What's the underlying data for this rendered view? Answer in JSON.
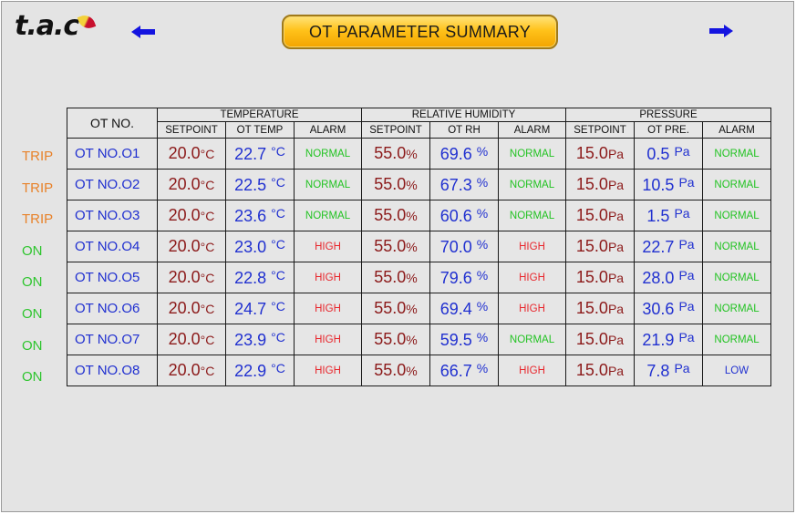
{
  "header": {
    "logo_text": "t.a.c",
    "title": "OT PARAMETER SUMMARY"
  },
  "icons": {
    "left_arrow": "arrow-left-icon",
    "right_arrow": "arrow-right-icon"
  },
  "colors": {
    "trip": "#e8822a",
    "on": "#2ec52e",
    "normal": "#22c322",
    "high": "#e8262c",
    "low": "#2030d0"
  },
  "table": {
    "otno_header": "OT NO.",
    "groups": [
      "TEMPERATURE",
      "RELATIVE HUMIDITY",
      "PRESSURE"
    ],
    "sub_headers": [
      "SETPOINT",
      "OT TEMP",
      "ALARM",
      "SETPOINT",
      "OT RH",
      "ALARM",
      "SETPOINT",
      "OT PRE.",
      "ALARM"
    ],
    "rows": [
      {
        "status": "TRIP",
        "otno": "OT NO.O1",
        "t_sp": "20.0",
        "t_sp_unit": "°C",
        "t_val": "22.7",
        "t_unit": "°C",
        "t_alarm": "NORMAL",
        "rh_sp": "55.0",
        "rh_sp_unit": "%",
        "rh_val": "69.6",
        "rh_unit": "%",
        "rh_alarm": "NORMAL",
        "p_sp": "15.0",
        "p_sp_unit": "Pa",
        "p_val": "0.5",
        "p_unit": "Pa",
        "p_alarm": "NORMAL"
      },
      {
        "status": "TRIP",
        "otno": "OT NO.O2",
        "t_sp": "20.0",
        "t_sp_unit": "°C",
        "t_val": "22.5",
        "t_unit": "°C",
        "t_alarm": "NORMAL",
        "rh_sp": "55.0",
        "rh_sp_unit": "%",
        "rh_val": "67.3",
        "rh_unit": "%",
        "rh_alarm": "NORMAL",
        "p_sp": "15.0",
        "p_sp_unit": "Pa",
        "p_val": "10.5",
        "p_unit": "Pa",
        "p_alarm": "NORMAL"
      },
      {
        "status": "TRIP",
        "otno": "OT NO.O3",
        "t_sp": "20.0",
        "t_sp_unit": "°C",
        "t_val": "23.6",
        "t_unit": "°C",
        "t_alarm": "NORMAL",
        "rh_sp": "55.0",
        "rh_sp_unit": "%",
        "rh_val": "60.6",
        "rh_unit": "%",
        "rh_alarm": "NORMAL",
        "p_sp": "15.0",
        "p_sp_unit": "Pa",
        "p_val": "1.5",
        "p_unit": "Pa",
        "p_alarm": "NORMAL"
      },
      {
        "status": "ON",
        "otno": "OT NO.O4",
        "t_sp": "20.0",
        "t_sp_unit": "°C",
        "t_val": "23.0",
        "t_unit": "°C",
        "t_alarm": "HIGH",
        "rh_sp": "55.0",
        "rh_sp_unit": "%",
        "rh_val": "70.0",
        "rh_unit": "%",
        "rh_alarm": "HIGH",
        "p_sp": "15.0",
        "p_sp_unit": "Pa",
        "p_val": "22.7",
        "p_unit": "Pa",
        "p_alarm": "NORMAL"
      },
      {
        "status": "ON",
        "otno": "OT NO.O5",
        "t_sp": "20.0",
        "t_sp_unit": "°C",
        "t_val": "22.8",
        "t_unit": "°C",
        "t_alarm": "HIGH",
        "rh_sp": "55.0",
        "rh_sp_unit": "%",
        "rh_val": "79.6",
        "rh_unit": "%",
        "rh_alarm": "HIGH",
        "p_sp": "15.0",
        "p_sp_unit": "Pa",
        "p_val": "28.0",
        "p_unit": "Pa",
        "p_alarm": "NORMAL"
      },
      {
        "status": "ON",
        "otno": "OT NO.O6",
        "t_sp": "20.0",
        "t_sp_unit": "°C",
        "t_val": "24.7",
        "t_unit": "°C",
        "t_alarm": "HIGH",
        "rh_sp": "55.0",
        "rh_sp_unit": "%",
        "rh_val": "69.4",
        "rh_unit": "%",
        "rh_alarm": "HIGH",
        "p_sp": "15.0",
        "p_sp_unit": "Pa",
        "p_val": "30.6",
        "p_unit": "Pa",
        "p_alarm": "NORMAL"
      },
      {
        "status": "ON",
        "otno": "OT NO.O7",
        "t_sp": "20.0",
        "t_sp_unit": "°C",
        "t_val": "23.9",
        "t_unit": "°C",
        "t_alarm": "HIGH",
        "rh_sp": "55.0",
        "rh_sp_unit": "%",
        "rh_val": "59.5",
        "rh_unit": "%",
        "rh_alarm": "NORMAL",
        "p_sp": "15.0",
        "p_sp_unit": "Pa",
        "p_val": "21.9",
        "p_unit": "Pa",
        "p_alarm": "NORMAL"
      },
      {
        "status": "ON",
        "otno": "OT NO.O8",
        "t_sp": "20.0",
        "t_sp_unit": "°C",
        "t_val": "22.9",
        "t_unit": "°C",
        "t_alarm": "HIGH",
        "rh_sp": "55.0",
        "rh_sp_unit": "%",
        "rh_val": "66.7",
        "rh_unit": "%",
        "rh_alarm": "HIGH",
        "p_sp": "15.0",
        "p_sp_unit": "Pa",
        "p_val": "7.8",
        "p_unit": "Pa",
        "p_alarm": "LOW"
      }
    ]
  }
}
